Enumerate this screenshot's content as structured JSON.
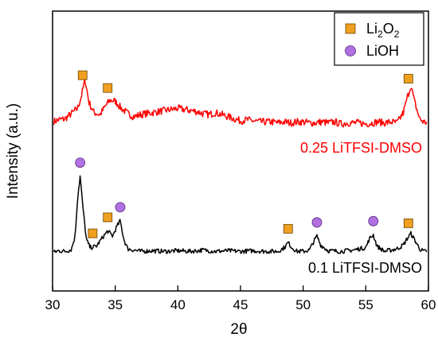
{
  "chart_data": {
    "type": "line",
    "xlabel": "2θ",
    "ylabel": "Intensity (a.u.)",
    "xlim": [
      30,
      60
    ],
    "xticks": [
      30,
      35,
      40,
      45,
      50,
      55,
      60
    ],
    "yticks_shown": false,
    "grid": false,
    "legend": {
      "placement": "top-right",
      "entries": [
        {
          "label": "Li",
          "sub1": "2",
          "mid": "O",
          "sub2": "2",
          "marker": "square",
          "color": "#f0a020"
        },
        {
          "label": "LiOH",
          "marker": "circle",
          "color": "#b070e0"
        }
      ]
    },
    "series": [
      {
        "name": "0.25 LiTFSI-DMSO",
        "color": "#ff0000",
        "x": [
          30.0,
          30.5,
          31.0,
          31.5,
          32.0,
          32.3,
          32.6,
          32.9,
          33.3,
          33.8,
          34.2,
          34.6,
          35.0,
          35.5,
          36.0,
          36.5,
          37.0,
          37.5,
          38.0,
          38.5,
          39.0,
          39.5,
          40.0,
          40.5,
          41.0,
          41.5,
          42.0,
          42.5,
          43.0,
          43.5,
          44.0,
          44.5,
          45.0,
          45.5,
          46.0,
          46.5,
          47.0,
          47.5,
          48.0,
          48.5,
          49.0,
          49.5,
          50.0,
          50.5,
          51.0,
          51.5,
          52.0,
          52.5,
          53.0,
          53.5,
          54.0,
          54.5,
          55.0,
          55.5,
          56.0,
          56.5,
          57.0,
          57.5,
          58.0,
          58.3,
          58.6,
          58.9,
          59.3,
          59.6,
          60.0
        ],
        "values": [
          0.45,
          0.55,
          0.6,
          0.85,
          1.1,
          1.7,
          2.5,
          1.4,
          0.9,
          0.8,
          1.2,
          1.5,
          1.45,
          1.1,
          0.85,
          0.7,
          0.8,
          0.85,
          0.9,
          0.95,
          1.0,
          1.05,
          1.1,
          1.05,
          1.0,
          0.95,
          0.85,
          0.8,
          0.9,
          0.8,
          0.7,
          0.6,
          0.5,
          0.55,
          0.5,
          0.45,
          0.45,
          0.45,
          0.4,
          0.45,
          0.4,
          0.45,
          0.45,
          0.4,
          0.4,
          0.45,
          0.4,
          0.45,
          0.35,
          0.4,
          0.4,
          0.4,
          0.35,
          0.4,
          0.45,
          0.4,
          0.45,
          0.4,
          0.9,
          1.6,
          2.2,
          1.4,
          0.6,
          0.45,
          0.4
        ]
      },
      {
        "name": "0.1 LiTFSI-DMSO",
        "color": "#000000",
        "x": [
          30.0,
          30.5,
          31.0,
          31.5,
          31.8,
          32.0,
          32.2,
          32.4,
          32.7,
          33.0,
          33.5,
          34.0,
          34.4,
          34.8,
          35.1,
          35.4,
          35.7,
          36.0,
          36.5,
          37.0,
          38.0,
          39.0,
          40.0,
          41.0,
          42.0,
          43.0,
          44.0,
          45.0,
          46.0,
          47.0,
          48.0,
          48.5,
          48.8,
          49.1,
          49.5,
          50.0,
          50.5,
          50.8,
          51.1,
          51.4,
          52.0,
          53.0,
          54.0,
          55.0,
          55.3,
          55.6,
          55.9,
          56.5,
          57.0,
          57.5,
          58.0,
          58.3,
          58.6,
          58.9,
          59.3,
          59.6,
          60.0
        ],
        "values": [
          0.2,
          0.35,
          0.3,
          0.45,
          1.5,
          4.5,
          6.2,
          4.0,
          1.2,
          0.6,
          0.7,
          1.4,
          1.9,
          1.5,
          2.2,
          2.7,
          1.2,
          0.5,
          0.4,
          0.3,
          0.35,
          0.3,
          0.35,
          0.3,
          0.4,
          0.3,
          0.35,
          0.3,
          0.35,
          0.3,
          0.3,
          0.6,
          1.0,
          0.6,
          0.3,
          0.3,
          0.4,
          1.0,
          1.5,
          0.8,
          0.35,
          0.3,
          0.4,
          0.6,
          1.3,
          1.6,
          0.7,
          0.3,
          0.4,
          0.5,
          0.8,
          1.3,
          1.7,
          1.2,
          0.5,
          0.3,
          0.3
        ]
      }
    ],
    "markers": [
      {
        "series": "0.25 LiTFSI-DMSO",
        "phase": "Li2O2",
        "shape": "square",
        "x": [
          32.4,
          34.4,
          58.4
        ]
      },
      {
        "series": "0.1 LiTFSI-DMSO",
        "phase": "LiOH",
        "shape": "circle",
        "x": [
          32.2,
          35.4,
          51.1,
          55.6
        ]
      },
      {
        "series": "0.1 LiTFSI-DMSO",
        "phase": "Li2O2",
        "shape": "square",
        "x": [
          33.2,
          34.4,
          48.8,
          58.4
        ]
      }
    ]
  }
}
